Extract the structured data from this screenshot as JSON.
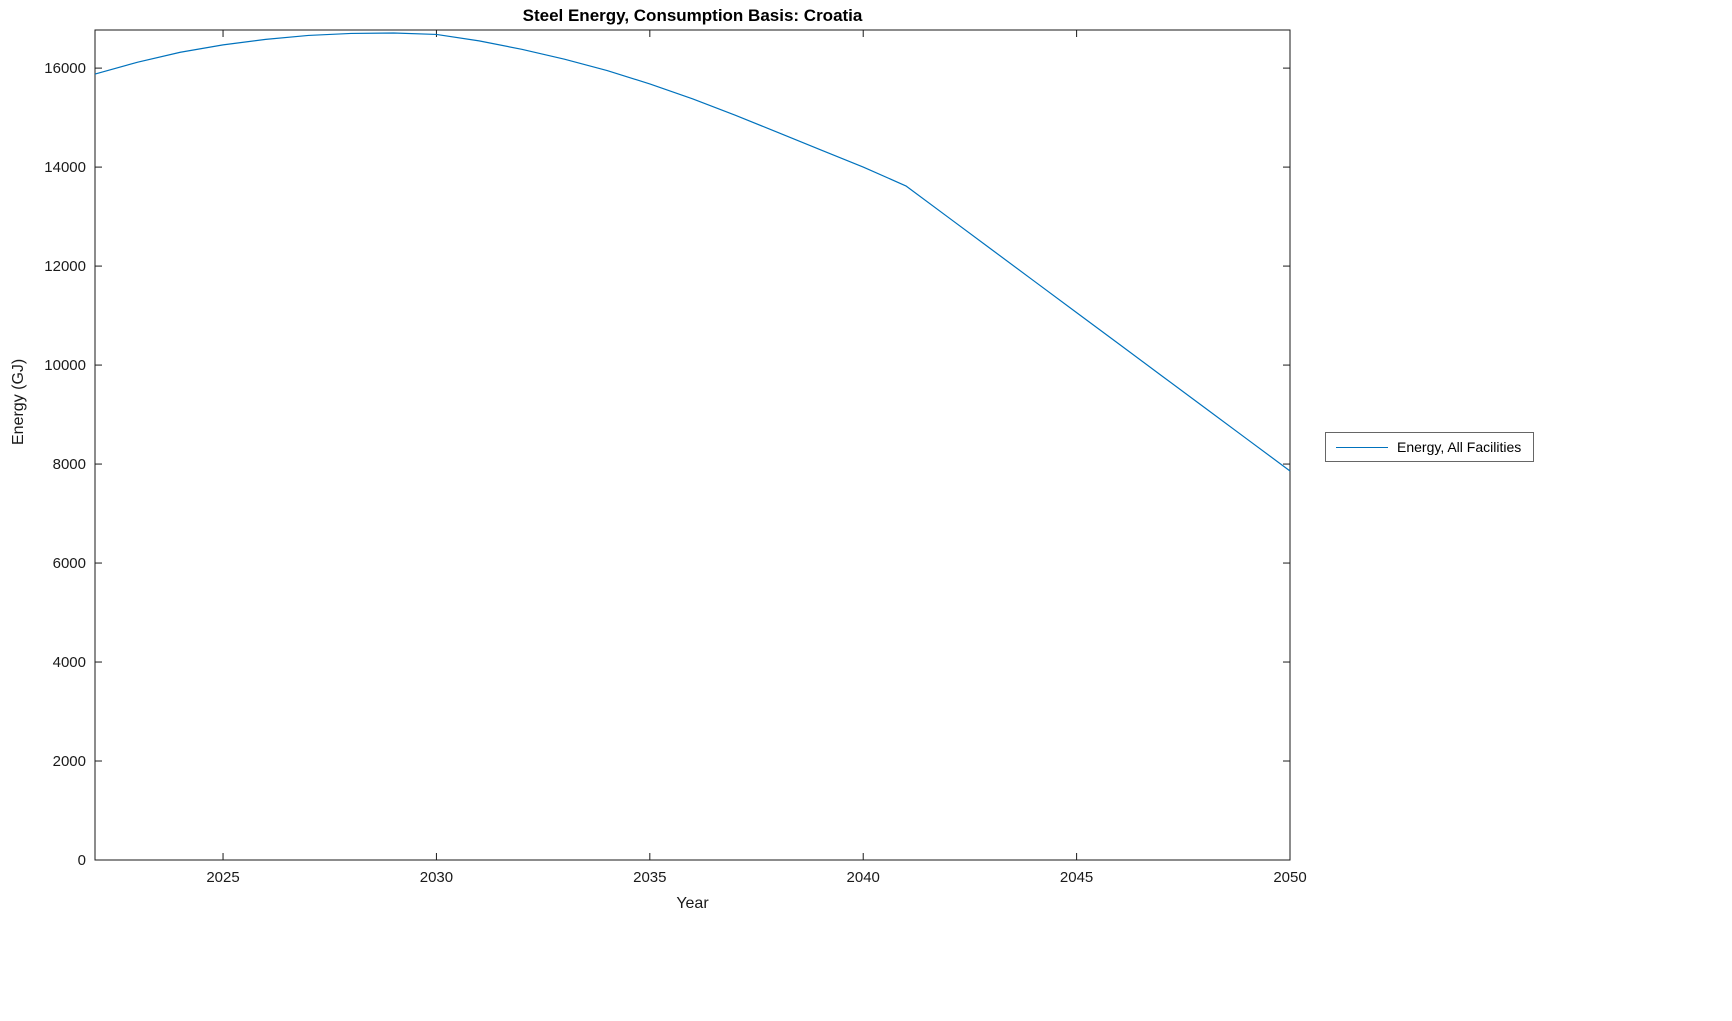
{
  "chart_data": {
    "type": "line",
    "title": "Steel Energy, Consumption Basis: Croatia",
    "xlabel": "Year",
    "ylabel": "Energy (GJ)",
    "xlim": [
      2022,
      2050
    ],
    "ylim": [
      0,
      16770
    ],
    "xticks": [
      2025,
      2030,
      2035,
      2040,
      2045,
      2050
    ],
    "yticks": [
      0,
      2000,
      4000,
      6000,
      8000,
      10000,
      12000,
      14000,
      16000
    ],
    "grid": false,
    "legend_position": "outside-right",
    "axis_color": "#1a1a1a",
    "series": [
      {
        "name": "Energy, All Facilities",
        "color": "#0072BD",
        "x": [
          2022,
          2023,
          2024,
          2025,
          2026,
          2027,
          2028,
          2029,
          2030,
          2031,
          2032,
          2033,
          2034,
          2035,
          2036,
          2037,
          2038,
          2039,
          2040,
          2041,
          2042,
          2043,
          2044,
          2045,
          2046,
          2047,
          2048,
          2049,
          2050
        ],
        "values": [
          15880,
          16120,
          16320,
          16470,
          16580,
          16660,
          16700,
          16710,
          16680,
          16550,
          16380,
          16180,
          15950,
          15680,
          15380,
          15050,
          14700,
          14350,
          14000,
          13620,
          12980,
          12340,
          11700,
          11060,
          10420,
          9780,
          9140,
          8500,
          7860
        ]
      }
    ]
  },
  "legend": {
    "label": "Energy, All Facilities"
  },
  "labels": {
    "title": "Steel Energy, Consumption Basis: Croatia",
    "xlabel": "Year",
    "ylabel": "Energy (GJ)"
  }
}
